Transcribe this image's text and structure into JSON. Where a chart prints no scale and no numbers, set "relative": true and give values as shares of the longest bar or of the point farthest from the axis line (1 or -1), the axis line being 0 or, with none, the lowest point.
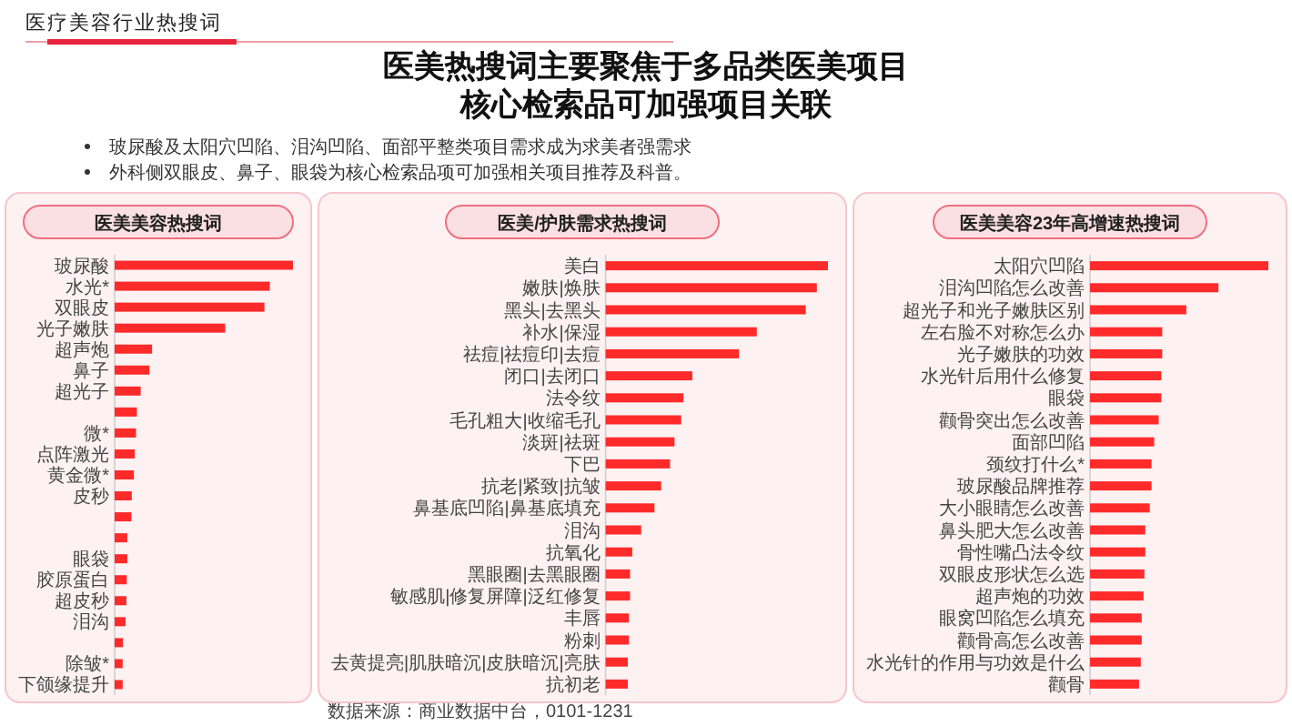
{
  "chart_data": [
    {
      "type": "other",
      "title": "医美热搜词主要聚焦于多品类医美项目",
      "subtitle": "核心检索品可加强项目关联",
      "annotations": [
        "医疗美容行业热搜词",
        "玻尿酸及太阳穴凹陷、泪沟凹陷、面部平整类项目需求成为求美者强需求",
        "外科侧双眼皮、鼻子、眼袋为核心检索品项可加强相关项目推荐及科普。",
        "数据来源：商业数据中台，0101-1231"
      ]
    },
    {
      "type": "bar",
      "orientation": "horizontal",
      "relative": true,
      "title": "医美美容热搜词",
      "color": "#ff2a2a",
      "categories": [
        "玻尿酸",
        "水光*",
        "双眼皮",
        "光子嫩肤",
        "超声炮",
        "鼻子",
        "超光子",
        null,
        "微*",
        "点阵激光",
        "黄金微*",
        "皮秒",
        null,
        null,
        "眼袋",
        "胶原蛋白",
        "超皮秒",
        "泪沟",
        null,
        "除皱*",
        "下颌缘提升"
      ],
      "values": [
        1,
        0.87,
        0.84,
        0.62,
        0.21,
        0.195,
        0.146,
        0.125,
        0.12,
        0.113,
        0.108,
        0.096,
        0.094,
        0.071,
        0.071,
        0.068,
        0.066,
        0.061,
        0.047,
        0.045,
        0.045
      ]
    },
    {
      "type": "bar",
      "orientation": "horizontal",
      "relative": true,
      "title": "医美/护肤需求热搜词",
      "color": "#ff2a2a",
      "categories": [
        "美白",
        "嫩肤|焕肤",
        "黑头|去黑头",
        "补水|保湿",
        "祛痘|祛痘印|去痘",
        "闭口|去闭口",
        "法令纹",
        "毛孔粗大|收缩毛孔",
        "淡斑|祛斑",
        "下巴",
        "抗老|紧致|抗皱",
        "鼻基底凹陷|鼻基底填充",
        "泪沟",
        "抗氧化",
        "黑眼圈|去黑眼圈",
        "敏感肌|修复屏障|泛红修复",
        "丰唇",
        "粉刺",
        "去黄提亮|肌肤暗沉|皮肤暗沉|亮肤",
        "抗初老"
      ],
      "values": [
        1,
        0.95,
        0.9,
        0.68,
        0.6,
        0.39,
        0.35,
        0.34,
        0.31,
        0.29,
        0.25,
        0.22,
        0.16,
        0.12,
        0.11,
        0.11,
        0.105,
        0.105,
        0.1,
        0.1
      ]
    },
    {
      "type": "bar",
      "orientation": "horizontal",
      "relative": true,
      "title": "医美美容23年高增速热搜词",
      "color": "#ff2a2a",
      "categories": [
        "太阳穴凹陷",
        "泪沟凹陷怎么改善",
        "超光子和光子嫩肤区别",
        "左右脸不对称怎么办",
        "光子嫩肤的功效",
        "水光针后用什么修复",
        "眼袋",
        "颧骨突出怎么改善",
        "面部凹陷",
        "颈纹打什么*",
        "玻尿酸品牌推荐",
        "大小眼睛怎么改善",
        "鼻头肥大怎么改善",
        "骨性嘴凸法令纹",
        "双眼皮形状怎么选",
        "超声炮的功效",
        "眼窝凹陷怎么填充",
        "颧骨高怎么改善",
        "水光针的作用与功效是什么",
        "颧骨"
      ],
      "values": [
        1,
        0.72,
        0.54,
        0.405,
        0.405,
        0.4,
        0.4,
        0.385,
        0.36,
        0.345,
        0.345,
        0.335,
        0.31,
        0.31,
        0.305,
        0.3,
        0.29,
        0.29,
        0.285,
        0.275
      ]
    }
  ]
}
